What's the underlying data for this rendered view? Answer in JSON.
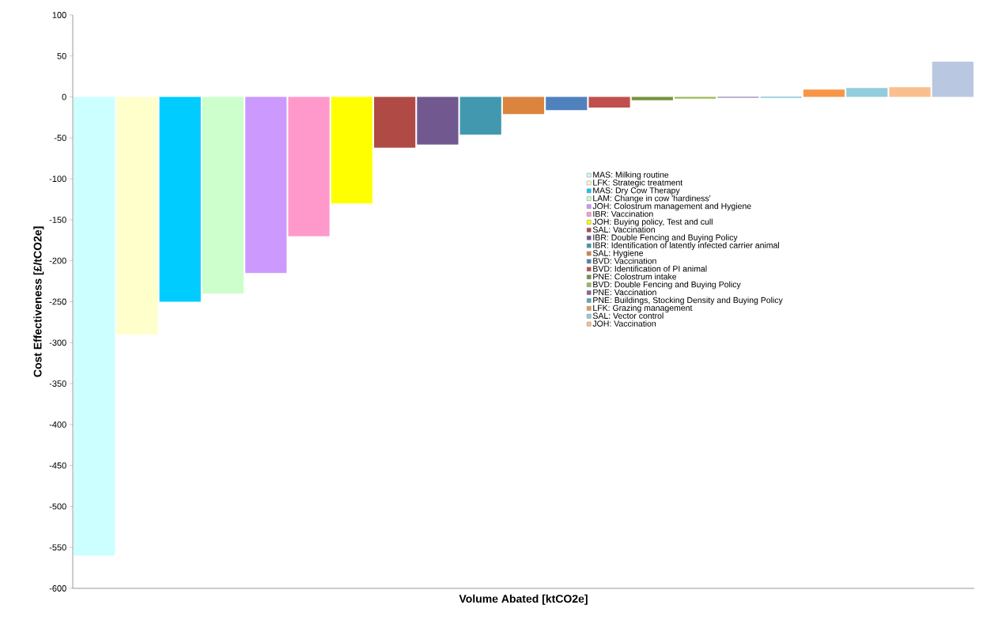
{
  "chart_data": {
    "type": "bar",
    "xlabel": "Volume Abated [ktCO2e]",
    "ylabel": "Cost Effectiveness [£/tCO2e]",
    "categories": [
      null,
      null,
      null,
      null,
      null,
      null,
      null,
      null,
      null,
      null,
      null,
      null,
      null,
      null,
      null,
      null,
      null,
      null,
      null,
      null,
      null
    ],
    "ylim": [
      -600,
      100
    ],
    "yticks": [
      -600,
      -550,
      -500,
      -450,
      -400,
      -350,
      -300,
      -250,
      -200,
      -150,
      -100,
      -50,
      0,
      50,
      100
    ],
    "grid": false,
    "legend": "right",
    "tick_labels": "y",
    "series": [
      {
        "name": "MAS: Milking routine",
        "color": "#ccffff",
        "values": [
          -560,
          null,
          null,
          null,
          null,
          null,
          null,
          null,
          null,
          null,
          null,
          null,
          null,
          null,
          null,
          null,
          null,
          null,
          null,
          null,
          null
        ]
      },
      {
        "name": "LFK: Strategic treatment",
        "color": "#ffffcc",
        "values": [
          null,
          -290,
          null,
          null,
          null,
          null,
          null,
          null,
          null,
          null,
          null,
          null,
          null,
          null,
          null,
          null,
          null,
          null,
          null,
          null,
          null
        ]
      },
      {
        "name": "MAS: Dry Cow Therapy",
        "color": "#00ccff",
        "values": [
          null,
          null,
          -250,
          null,
          null,
          null,
          null,
          null,
          null,
          null,
          null,
          null,
          null,
          null,
          null,
          null,
          null,
          null,
          null,
          null,
          null
        ]
      },
      {
        "name": "LAM: Change in cow 'hardiness'",
        "color": "#ccffcc",
        "values": [
          null,
          null,
          null,
          -240,
          null,
          null,
          null,
          null,
          null,
          null,
          null,
          null,
          null,
          null,
          null,
          null,
          null,
          null,
          null,
          null,
          null
        ]
      },
      {
        "name": "JOH: Colostrum management and Hygiene",
        "color": "#cc99ff",
        "values": [
          null,
          null,
          null,
          null,
          -215,
          null,
          null,
          null,
          null,
          null,
          null,
          null,
          null,
          null,
          null,
          null,
          null,
          null,
          null,
          null,
          null
        ]
      },
      {
        "name": "IBR: Vaccination",
        "color": "#ff99cc",
        "values": [
          null,
          null,
          null,
          null,
          null,
          -170,
          null,
          null,
          null,
          null,
          null,
          null,
          null,
          null,
          null,
          null,
          null,
          null,
          null,
          null,
          null
        ]
      },
      {
        "name": "JOH: Buying policy, Test and cull",
        "color": "#ffff00",
        "values": [
          null,
          null,
          null,
          null,
          null,
          null,
          -130,
          null,
          null,
          null,
          null,
          null,
          null,
          null,
          null,
          null,
          null,
          null,
          null,
          null,
          null
        ]
      },
      {
        "name": "SAL: Vaccination",
        "color": "#b04a45",
        "values": [
          null,
          null,
          null,
          null,
          null,
          null,
          null,
          -62,
          null,
          null,
          null,
          null,
          null,
          null,
          null,
          null,
          null,
          null,
          null,
          null,
          null
        ]
      },
      {
        "name": "IBR: Double Fencing and Buying Policy",
        "color": "#71588f",
        "values": [
          null,
          null,
          null,
          null,
          null,
          null,
          null,
          null,
          -58,
          null,
          null,
          null,
          null,
          null,
          null,
          null,
          null,
          null,
          null,
          null,
          null
        ]
      },
      {
        "name": "IBR: Identification of latently infected carrier animal",
        "color": "#4198af",
        "values": [
          null,
          null,
          null,
          null,
          null,
          null,
          null,
          null,
          null,
          -46,
          null,
          null,
          null,
          null,
          null,
          null,
          null,
          null,
          null,
          null,
          null
        ]
      },
      {
        "name": "SAL: Hygiene",
        "color": "#db843d",
        "values": [
          null,
          null,
          null,
          null,
          null,
          null,
          null,
          null,
          null,
          null,
          -21,
          null,
          null,
          null,
          null,
          null,
          null,
          null,
          null,
          null,
          null
        ]
      },
      {
        "name": "BVD: Vaccination",
        "color": "#4f81bd",
        "values": [
          null,
          null,
          null,
          null,
          null,
          null,
          null,
          null,
          null,
          null,
          null,
          -16,
          null,
          null,
          null,
          null,
          null,
          null,
          null,
          null,
          null
        ]
      },
      {
        "name": "BVD: Identification of PI animal",
        "color": "#c0504d",
        "values": [
          null,
          null,
          null,
          null,
          null,
          null,
          null,
          null,
          null,
          null,
          null,
          null,
          -13,
          null,
          null,
          null,
          null,
          null,
          null,
          null,
          null
        ]
      },
      {
        "name": "PNE: Colostrum intake",
        "color": "#77933c",
        "values": [
          null,
          null,
          null,
          null,
          null,
          null,
          null,
          null,
          null,
          null,
          null,
          null,
          null,
          -4,
          null,
          null,
          null,
          null,
          null,
          null,
          null
        ]
      },
      {
        "name": "BVD: Double Fencing and Buying Policy",
        "color": "#9bbb59",
        "values": [
          null,
          null,
          null,
          null,
          null,
          null,
          null,
          null,
          null,
          null,
          null,
          null,
          null,
          null,
          -2,
          null,
          null,
          null,
          null,
          null,
          null
        ]
      },
      {
        "name": "PNE: Vaccination",
        "color": "#8064a2",
        "values": [
          null,
          null,
          null,
          null,
          null,
          null,
          null,
          null,
          null,
          null,
          null,
          null,
          null,
          null,
          null,
          -1,
          null,
          null,
          null,
          null,
          null
        ]
      },
      {
        "name": "PNE: Buildings, Stocking Density and Buying Policy",
        "color": "#4bacc6",
        "values": [
          null,
          null,
          null,
          null,
          null,
          null,
          null,
          null,
          null,
          null,
          null,
          null,
          null,
          null,
          null,
          null,
          -1,
          null,
          null,
          null,
          null
        ]
      },
      {
        "name": "LFK: Grazing management",
        "color": "#f79646",
        "values": [
          null,
          null,
          null,
          null,
          null,
          null,
          null,
          null,
          null,
          null,
          null,
          null,
          null,
          null,
          null,
          null,
          null,
          9,
          null,
          null,
          null
        ]
      },
      {
        "name": "SAL: Vector control",
        "color": "#93cddd",
        "values": [
          null,
          null,
          null,
          null,
          null,
          null,
          null,
          null,
          null,
          null,
          null,
          null,
          null,
          null,
          null,
          null,
          null,
          null,
          11,
          null,
          null
        ]
      },
      {
        "name": "JOH: Vaccination",
        "color": "#fabf8f",
        "values": [
          null,
          null,
          null,
          null,
          null,
          null,
          null,
          null,
          null,
          null,
          null,
          null,
          null,
          null,
          null,
          null,
          null,
          null,
          null,
          12,
          null
        ]
      },
      {
        "color": "#b9c7e0",
        "values": [
          null,
          null,
          null,
          null,
          null,
          null,
          null,
          null,
          null,
          null,
          null,
          null,
          null,
          null,
          null,
          null,
          null,
          null,
          null,
          null,
          43
        ]
      }
    ]
  }
}
